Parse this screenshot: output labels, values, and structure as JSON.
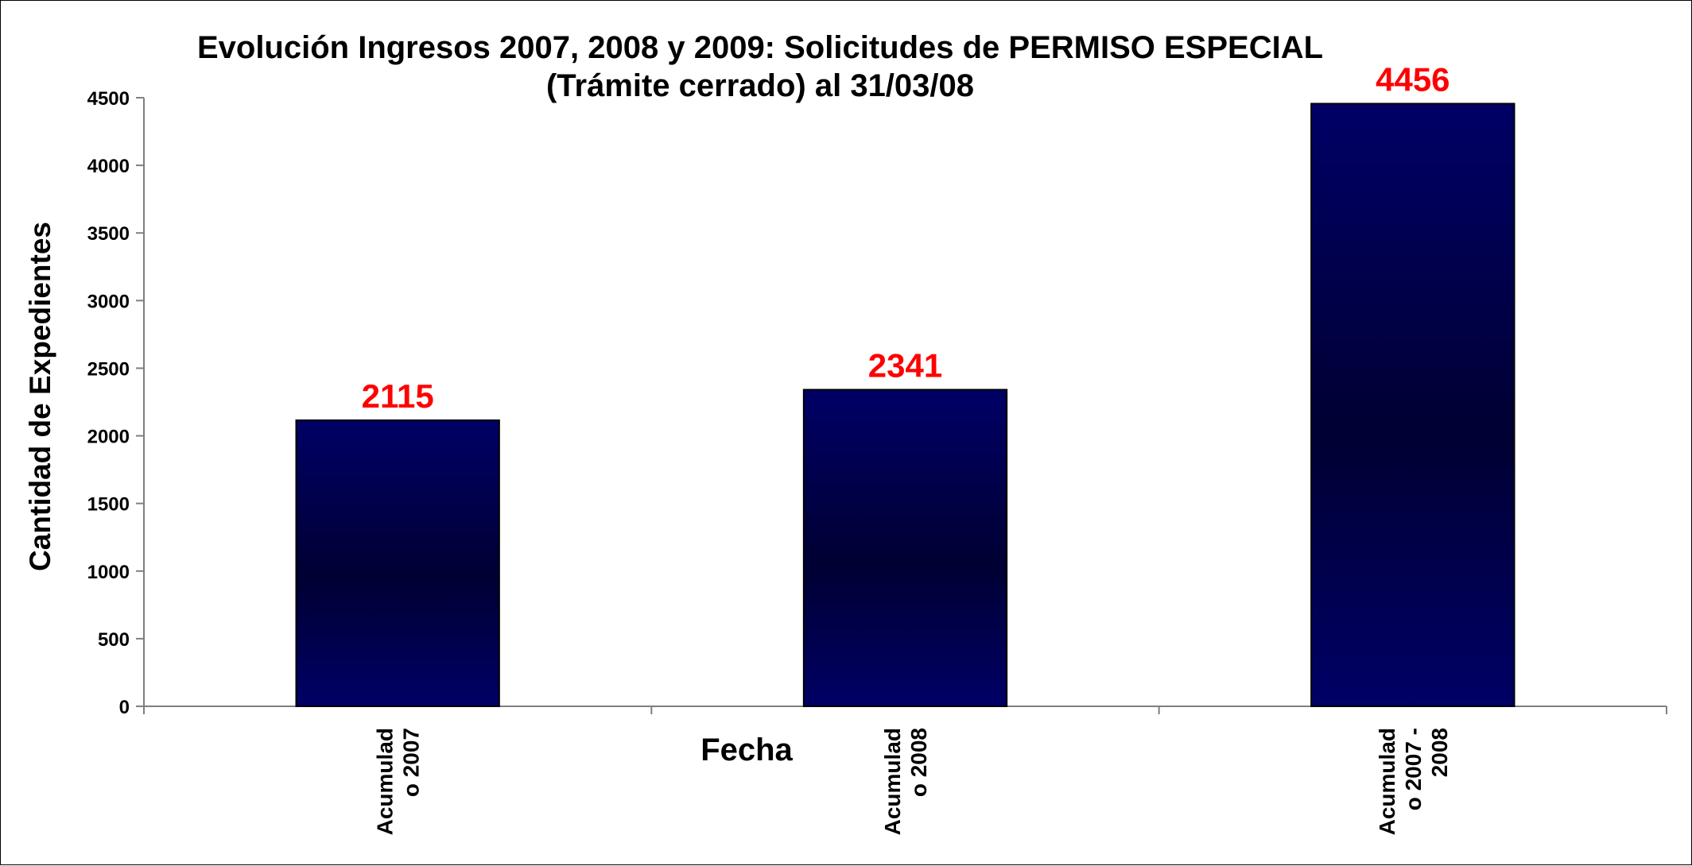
{
  "chart_data": {
    "type": "bar",
    "title": "Evolución Ingresos 2007, 2008 y 2009: Solicitudes de PERMISO ESPECIAL",
    "subtitle": "(Trámite cerrado) al 31/03/08",
    "xlabel": "Fecha",
    "ylabel": "Cantidad de Expedientes",
    "categories": [
      [
        "Acumulad",
        "o 2007"
      ],
      [
        "Acumulad",
        "o 2008"
      ],
      [
        "Acumulad",
        "o 2007 -",
        "2008"
      ]
    ],
    "values": [
      2115,
      2341,
      4456
    ],
    "data_labels": [
      "2115",
      "2341",
      "4456"
    ],
    "ylim": [
      0,
      4500
    ],
    "yticks": [
      0,
      500,
      1000,
      1500,
      2000,
      2500,
      3000,
      3500,
      4000,
      4500
    ],
    "grid": false,
    "legend": "none",
    "colors": {
      "bar_edge": "#000066",
      "bar_center": "#000033",
      "bar_outline": "#000000",
      "data_label": "#ff0000",
      "axis": "#7f7f7f"
    }
  }
}
